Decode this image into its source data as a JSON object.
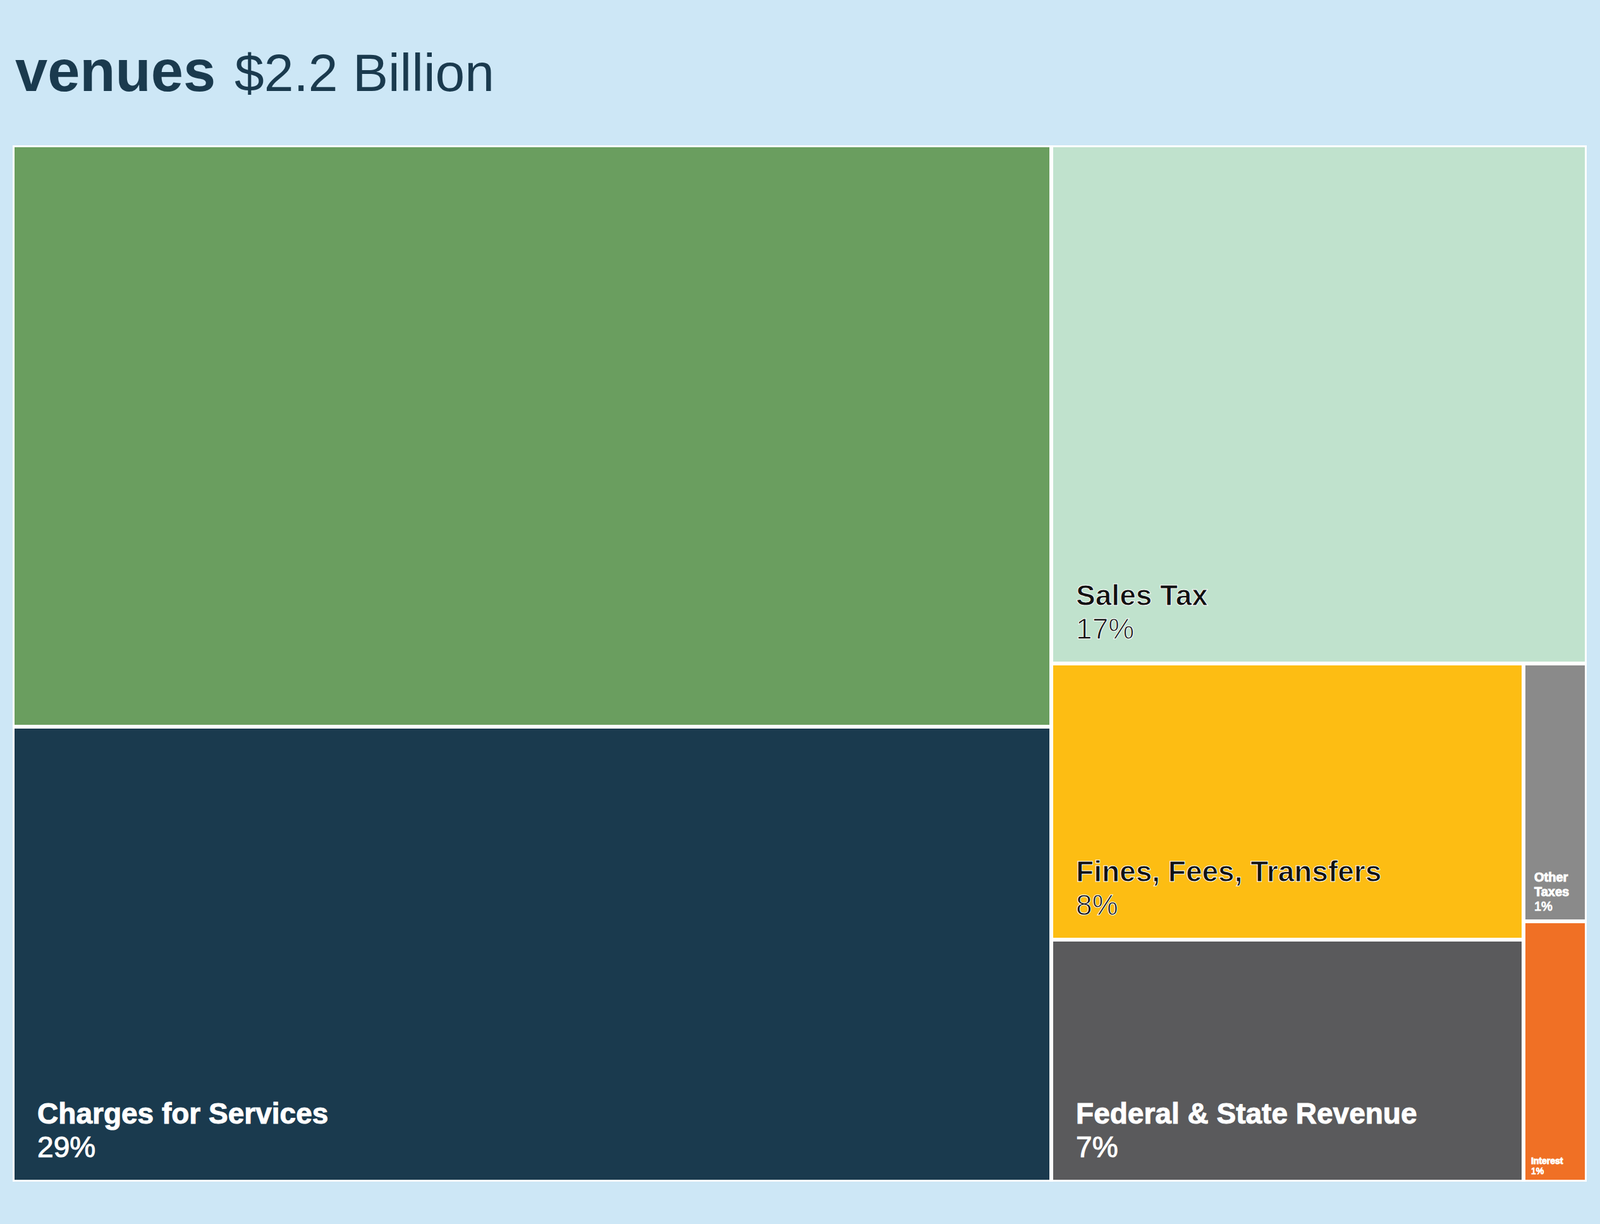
{
  "chart_data": {
    "type": "treemap",
    "title": "venues",
    "subtitle": "$2.2 Billion",
    "categories": [
      null,
      "Charges for Services",
      "Sales Tax",
      "Fines, Fees, Transfers",
      "Federal & State Revenue",
      "Other Taxes",
      "Interest"
    ],
    "values": [
      37,
      29,
      17,
      8,
      7,
      1,
      1
    ],
    "value_labels": [
      null,
      "29%",
      "17%",
      "8%",
      "7%",
      "1%",
      "1%"
    ],
    "colors": [
      "#6a9e5f",
      "#1a3a4e",
      "#c0e2cd",
      "#fdbd13",
      "#5a5a5c",
      "#8a8a8a",
      "#f07025"
    ],
    "data_labels": true
  }
}
